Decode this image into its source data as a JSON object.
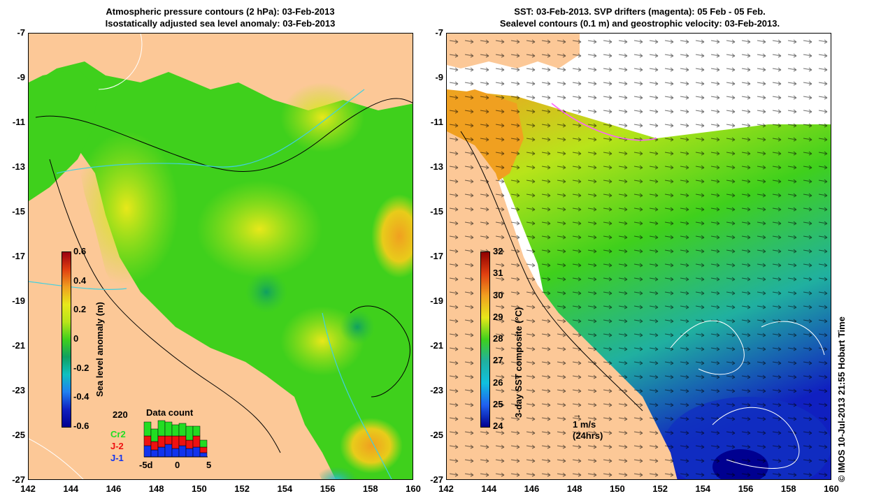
{
  "left": {
    "title_line1": "Atmospheric pressure contours (2 hPa): 03-Feb-2013",
    "title_line2": "Isostatically adjusted sea level anomaly: 03-Feb-2013",
    "colorbar_label": "Sea level anomaly (m)",
    "colorbar_ticks": [
      "0.6",
      "0.4",
      "0.2",
      "0",
      "-0.2",
      "-0.4",
      "-0.6"
    ],
    "data_count": {
      "title": "Data count",
      "max_label": "220",
      "series": [
        "Cr2",
        "J-2",
        "J-1"
      ],
      "axis": [
        "-5d",
        "0",
        "5"
      ],
      "colors": [
        "#22dd22",
        "#ee1111",
        "#1133ee"
      ]
    }
  },
  "right": {
    "title_line1": "SST: 03-Feb-2013. SVP drifters (magenta): 05 Feb - 05 Feb.",
    "title_line2": "Sealevel contours (0.1 m) and geostrophic velocity: 03-Feb-2013.",
    "colorbar_label": "3-day SST composite (°C)",
    "colorbar_ticks": [
      "32",
      "31",
      "30",
      "29",
      "28",
      "27",
      "26",
      "25",
      "24"
    ],
    "velocity_scale": "1 m/s",
    "velocity_scale_sub": "(24hrs)"
  },
  "lat_ticks": [
    "-7",
    "-9",
    "-11",
    "-13",
    "-15",
    "-17",
    "-19",
    "-21",
    "-23",
    "-25",
    "-27"
  ],
  "lon_ticks": [
    "142",
    "144",
    "146",
    "148",
    "150",
    "152",
    "154",
    "156",
    "158",
    "160"
  ],
  "copyright": "© IMOS 10-Jul-2013 21:55 Hobart Time",
  "colors": {
    "land": "#fcc897",
    "sla_ocean": "#3fd01c",
    "sst_ocean": "#5fcf2a"
  }
}
